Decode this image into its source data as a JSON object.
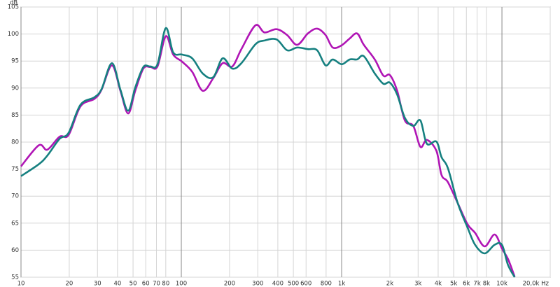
{
  "chart_data": {
    "type": "line",
    "y_label": "dB",
    "x_log": true,
    "grid": true,
    "xlim": [
      10,
      20000
    ],
    "ylim": [
      55,
      105
    ],
    "xticks": [
      10,
      20,
      30,
      40,
      50,
      60,
      70,
      80,
      100,
      200,
      300,
      400,
      500,
      600,
      800,
      {
        "value": 1000,
        "label": "1k"
      },
      {
        "value": 2000,
        "label": "2k"
      },
      {
        "value": 3000,
        "label": "3k"
      },
      {
        "value": 4000,
        "label": "4k"
      },
      {
        "value": 5000,
        "label": "5k"
      },
      {
        "value": 6000,
        "label": "6k"
      },
      {
        "value": 7000,
        "label": "7k"
      },
      {
        "value": 8000,
        "label": "8k"
      },
      {
        "value": 10000,
        "label": "10k"
      },
      {
        "value": 20000,
        "label": "20,0k Hz"
      }
    ],
    "yticks": [
      55,
      60,
      65,
      70,
      75,
      80,
      85,
      90,
      95,
      100,
      105
    ],
    "x": [
      10,
      12.9,
      14.6,
      17.4,
      19.8,
      23.5,
      28.7,
      31.8,
      36.9,
      41.7,
      46.6,
      51.6,
      58,
      64,
      71,
      80,
      89,
      101,
      117,
      136,
      158,
      181,
      208,
      237,
      290,
      330,
      393,
      457,
      528,
      616,
      703,
      794,
      880,
      1000,
      1125,
      1250,
      1375,
      1610,
      1820,
      2000,
      2220,
      2480,
      2800,
      3100,
      3400,
      3900,
      4200,
      4600,
      5300,
      6100,
      6800,
      7800,
      9000,
      10000,
      10900,
      12000
    ],
    "series": [
      {
        "color": "#b015b5",
        "values": [
          75.5,
          79.4,
          78.6,
          81.0,
          81.3,
          86.6,
          88.0,
          89.7,
          94.2,
          89.5,
          85.3,
          89.5,
          93.6,
          93.9,
          94.0,
          99.6,
          96.2,
          94.9,
          93.0,
          89.5,
          91.8,
          94.6,
          94.0,
          97.2,
          101.6,
          100.3,
          100.9,
          99.8,
          98.0,
          100.1,
          101.0,
          99.8,
          97.5,
          97.9,
          99.2,
          100.1,
          98.0,
          95.3,
          92.3,
          92.4,
          89.5,
          84.0,
          83.0,
          79.1,
          80.4,
          78.4,
          73.9,
          72.6,
          68.7,
          64.8,
          63.2,
          60.7,
          62.9,
          60.3,
          58.4,
          55.1
        ]
      },
      {
        "color": "#168080",
        "values": [
          73.7,
          75.9,
          77.5,
          80.6,
          81.7,
          86.9,
          88.3,
          89.8,
          94.6,
          89.7,
          85.8,
          90.1,
          93.9,
          94.0,
          94.4,
          101.1,
          96.6,
          96.2,
          95.5,
          92.7,
          92.0,
          95.5,
          93.6,
          94.6,
          98.1,
          98.8,
          99.0,
          97.0,
          97.5,
          97.2,
          97.0,
          94.2,
          95.3,
          94.4,
          95.3,
          95.3,
          95.9,
          92.7,
          90.8,
          91.0,
          88.8,
          84.5,
          83.0,
          84.0,
          79.7,
          80.1,
          77.2,
          75.2,
          68.7,
          64.2,
          61.0,
          59.4,
          61.0,
          61.0,
          57.3,
          55.0
        ]
      }
    ]
  }
}
